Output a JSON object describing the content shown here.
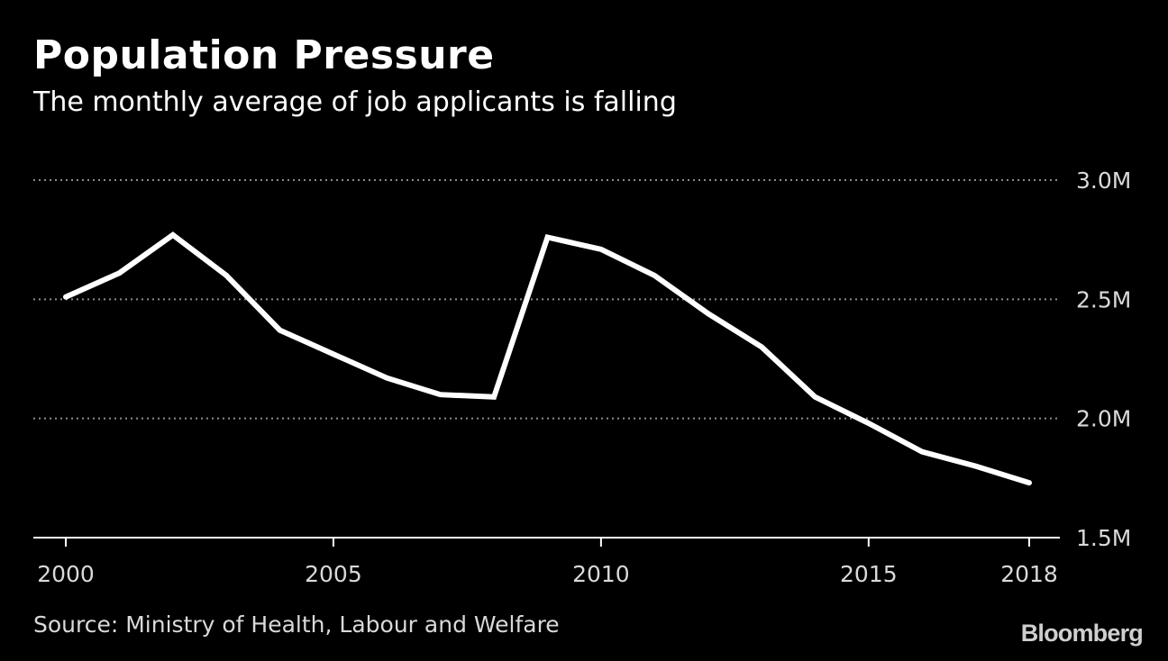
{
  "header": {
    "title": "Population Pressure",
    "subtitle": "The monthly average of job applicants is falling"
  },
  "footer": {
    "source": "Source: Ministry of Health, Labour and Welfare",
    "brand": "Bloomberg"
  },
  "colors": {
    "background": "#000000",
    "line": "#ffffff",
    "grid": "#8c8c8c",
    "text": "#ffffff",
    "muted": "#d9d9d9"
  },
  "chart_data": {
    "type": "line",
    "title": "Population Pressure",
    "subtitle": "The monthly average of job applicants is falling",
    "xlabel": "",
    "ylabel": "",
    "x": [
      2000,
      2001,
      2002,
      2003,
      2004,
      2005,
      2006,
      2007,
      2008,
      2009,
      2010,
      2011,
      2012,
      2013,
      2014,
      2015,
      2016,
      2017,
      2018
    ],
    "series": [
      {
        "values": [
          2.51,
          2.61,
          2.77,
          2.6,
          2.37,
          2.27,
          2.17,
          2.1,
          2.09,
          2.76,
          2.71,
          2.6,
          2.44,
          2.3,
          2.09,
          1.98,
          1.86,
          1.8,
          1.73
        ]
      }
    ],
    "xlim": [
      2000,
      2018
    ],
    "ylim": [
      1.5,
      3.0
    ],
    "x_ticks": [
      2000,
      2005,
      2010,
      2015,
      2018
    ],
    "x_tick_labels": [
      "2000",
      "2005",
      "2010",
      "2015",
      "2018"
    ],
    "y_ticks": [
      1.5,
      2.0,
      2.5,
      3.0
    ],
    "y_tick_labels": [
      "1.5M",
      "2.0M",
      "2.5M",
      "3.0M"
    ],
    "y_axis_side": "right",
    "grid": "horizontal dotted",
    "legend": "none"
  }
}
